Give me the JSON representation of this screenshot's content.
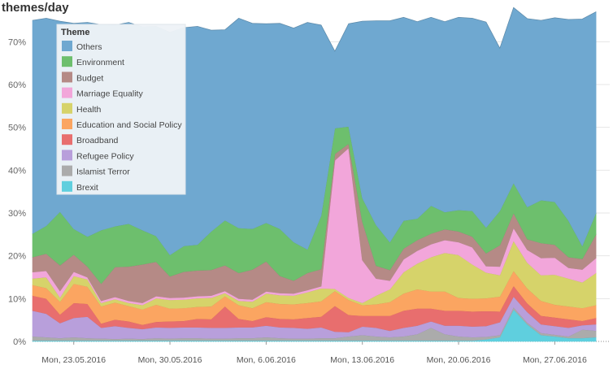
{
  "chart_data": {
    "type": "area",
    "stacked": true,
    "title": "themes/day",
    "legend_title": "Theme",
    "legend_position": "top-left",
    "xlabel": "",
    "ylabel": "",
    "y_unit": "%",
    "ylim": [
      0,
      75
    ],
    "yticks": [
      0,
      10,
      20,
      30,
      40,
      50,
      60,
      70
    ],
    "ytick_labels": [
      "0%",
      "10%",
      "20%",
      "30%",
      "40%",
      "50%",
      "60%",
      "70%"
    ],
    "x_range": [
      "2016-05-20",
      "2016-07-01"
    ],
    "xticks": [
      "2016-05-23",
      "2016-05-30",
      "2016-06-06",
      "2016-06-13",
      "2016-06-20",
      "2016-06-27"
    ],
    "xtick_labels": [
      "Mon, 23.05.2016",
      "Mon, 30.05.2016",
      "Mon, 6.06.2016",
      "Mon, 13.06.2016",
      "Mon, 20.06.2016",
      "Mon, 27.06.2016"
    ],
    "x": [
      "2016-05-20",
      "2016-05-21",
      "2016-05-22",
      "2016-05-23",
      "2016-05-24",
      "2016-05-25",
      "2016-05-26",
      "2016-05-27",
      "2016-05-28",
      "2016-05-29",
      "2016-05-30",
      "2016-05-31",
      "2016-06-01",
      "2016-06-02",
      "2016-06-03",
      "2016-06-04",
      "2016-06-05",
      "2016-06-06",
      "2016-06-07",
      "2016-06-08",
      "2016-06-09",
      "2016-06-10",
      "2016-06-11",
      "2016-06-12",
      "2016-06-13",
      "2016-06-14",
      "2016-06-15",
      "2016-06-16",
      "2016-06-17",
      "2016-06-18",
      "2016-06-19",
      "2016-06-20",
      "2016-06-21",
      "2016-06-22",
      "2016-06-23",
      "2016-06-24",
      "2016-06-25",
      "2016-06-26",
      "2016-06-27",
      "2016-06-28",
      "2016-06-29",
      "2016-06-30"
    ],
    "series": [
      {
        "name": "Brexit",
        "color": "#5fcfde",
        "values": [
          0.2,
          0.2,
          0.2,
          0.2,
          0.2,
          0.2,
          0.2,
          0.2,
          0.2,
          0.2,
          0.2,
          0.2,
          0.2,
          0.2,
          0.2,
          0.2,
          0.2,
          0.2,
          0.2,
          0.2,
          0.2,
          0.2,
          0.2,
          0.2,
          0.2,
          0.2,
          0.2,
          0.2,
          0.2,
          0.2,
          0.2,
          0.2,
          0.2,
          0.5,
          1.0,
          7.5,
          4.0,
          1.5,
          1.2,
          0.8,
          0.8,
          1.0
        ]
      },
      {
        "name": "Islamist Terror",
        "color": "#ababab",
        "values": [
          1.0,
          0.8,
          0.6,
          0.8,
          0.6,
          0.5,
          0.4,
          0.5,
          0.4,
          0.6,
          0.5,
          0.6,
          0.6,
          0.5,
          0.5,
          0.6,
          0.6,
          0.8,
          0.6,
          0.5,
          0.5,
          0.6,
          0.6,
          1.0,
          1.3,
          1.0,
          0.8,
          1.0,
          1.5,
          3.0,
          1.5,
          1.0,
          0.8,
          0.6,
          0.5,
          0.5,
          0.4,
          0.5,
          0.4,
          0.4,
          2.0,
          1.5
        ]
      },
      {
        "name": "Refugee Policy",
        "color": "#b89fdb",
        "values": [
          6.0,
          5.5,
          3.5,
          4.5,
          5.0,
          2.5,
          3.0,
          2.5,
          2.3,
          2.5,
          2.5,
          2.5,
          2.5,
          2.5,
          2.5,
          2.5,
          2.5,
          2.7,
          2.5,
          2.5,
          2.3,
          2.5,
          1.5,
          1.0,
          2.0,
          2.0,
          1.5,
          2.0,
          2.0,
          1.5,
          2.0,
          2.5,
          2.5,
          2.5,
          3.0,
          2.5,
          2.5,
          2.0,
          2.0,
          2.0,
          1.0,
          1.5
        ]
      },
      {
        "name": "Broadband",
        "color": "#e86e6e",
        "values": [
          3.5,
          3.5,
          2.0,
          3.5,
          3.0,
          1.0,
          1.5,
          1.5,
          1.0,
          1.3,
          1.5,
          1.5,
          2.0,
          2.0,
          5.0,
          2.0,
          1.5,
          2.0,
          2.0,
          2.0,
          2.5,
          2.5,
          6.0,
          4.0,
          2.5,
          2.8,
          3.5,
          4.0,
          4.0,
          3.0,
          3.5,
          3.5,
          3.5,
          3.5,
          2.5,
          2.5,
          2.0,
          2.0,
          2.0,
          2.0,
          1.0,
          1.5
        ]
      },
      {
        "name": "Education and Social Policy",
        "color": "#fba561",
        "values": [
          2.5,
          2.5,
          3.0,
          4.5,
          4.0,
          4.0,
          4.0,
          3.6,
          3.6,
          4.0,
          3.0,
          3.0,
          2.8,
          3.0,
          2.4,
          3.2,
          3.0,
          3.5,
          3.5,
          3.5,
          3.5,
          3.6,
          3.5,
          3.5,
          2.5,
          2.7,
          3.2,
          4.0,
          4.5,
          4.0,
          4.5,
          3.0,
          3.0,
          3.0,
          3.5,
          3.5,
          3.5,
          3.5,
          3.0,
          3.0,
          3.0,
          3.0
        ]
      },
      {
        "name": "Health",
        "color": "#d6d36a",
        "values": [
          1.5,
          2.5,
          1.0,
          1.8,
          1.7,
          0.8,
          0.8,
          0.7,
          1.0,
          1.5,
          2.0,
          2.0,
          2.0,
          2.0,
          0.7,
          1.0,
          1.5,
          2.0,
          2.0,
          2.0,
          2.5,
          3.0,
          0.5,
          0.5,
          0.5,
          2.0,
          3.0,
          5.0,
          6.0,
          8.0,
          9.0,
          10.0,
          8.0,
          6.0,
          5.0,
          7.0,
          6.0,
          6.0,
          7.0,
          6.5,
          6.0,
          7.5
        ]
      },
      {
        "name": "Marriage Equality",
        "color": "#f2a6da",
        "values": [
          1.5,
          1.5,
          1.5,
          1.0,
          0.5,
          0.5,
          0.5,
          0.5,
          0.5,
          0.5,
          0.5,
          0.5,
          0.5,
          0.5,
          0.5,
          0.5,
          0.5,
          0.5,
          0.5,
          0.5,
          0.5,
          0.5,
          30.0,
          35.0,
          10.0,
          4.0,
          2.0,
          3.0,
          3.0,
          3.0,
          3.0,
          3.0,
          4.0,
          1.5,
          2.0,
          3.0,
          3.0,
          4.0,
          4.0,
          2.5,
          3.0,
          3.5
        ]
      },
      {
        "name": "Budget",
        "color": "#b58a86",
        "values": [
          3.5,
          4.0,
          6.0,
          4.0,
          2.5,
          4.0,
          7.0,
          8.0,
          9.0,
          8.0,
          5.0,
          6.0,
          6.0,
          6.0,
          6.0,
          6.0,
          7.0,
          7.0,
          4.0,
          3.0,
          4.0,
          4.0,
          1.5,
          1.0,
          9.0,
          3.0,
          2.5,
          2.5,
          2.5,
          2.5,
          2.5,
          2.5,
          2.5,
          3.0,
          5.0,
          3.5,
          2.5,
          3.5,
          3.0,
          2.5,
          2.5,
          5.5
        ]
      },
      {
        "name": "Environment",
        "color": "#6dbf6d",
        "values": [
          5.5,
          6.5,
          12.5,
          6.0,
          7.0,
          12.5,
          9.5,
          10.0,
          8.0,
          6.0,
          5.0,
          6.0,
          6.0,
          9.0,
          10.5,
          10.5,
          9.5,
          9.0,
          11.0,
          9.0,
          5.5,
          12.5,
          6.0,
          4.0,
          5.5,
          9.5,
          6.5,
          6.5,
          5.0,
          6.5,
          4.0,
          5.0,
          6.0,
          6.0,
          8.0,
          7.0,
          7.5,
          10.0,
          10.0,
          8.5,
          3.0,
          5.0
        ]
      },
      {
        "name": "Others",
        "color": "#6fa8d0",
        "values": [
          49.8,
          48.5,
          44.5,
          48.0,
          50.0,
          48.0,
          47.0,
          47.0,
          47.5,
          49.0,
          52.0,
          51.0,
          51.0,
          47.0,
          44.5,
          49.0,
          48.0,
          46.5,
          48.0,
          50.0,
          53.0,
          44.5,
          18.0,
          24.0,
          41.3,
          47.7,
          51.7,
          47.5,
          46.0,
          44.0,
          44.5,
          45.0,
          45.0,
          48.0,
          38.0,
          41.0,
          44.0,
          42.0,
          43.0,
          47.0,
          53.0,
          47.0
        ]
      }
    ]
  }
}
